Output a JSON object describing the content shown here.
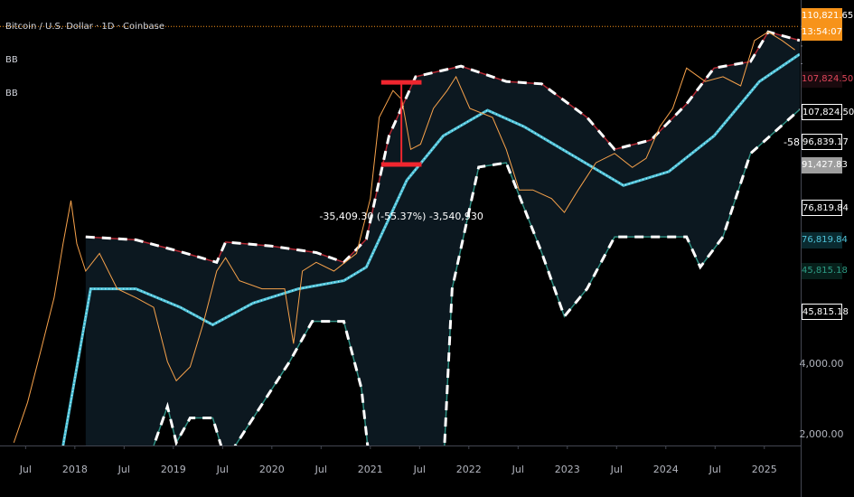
{
  "chart_data": {
    "type": "line",
    "title": "Bitcoin / U.S. Dollar · 1D · Coinbase",
    "indicators": [
      "BB",
      "BB"
    ],
    "log_scale": true,
    "grid": false,
    "xlim": [
      2017.24,
      2025.36
    ],
    "xticks": [
      {
        "value": 2017.5,
        "label": "Jul"
      },
      2018,
      {
        "value": 2018.5,
        "label": "Jul"
      },
      2019,
      {
        "value": 2019.5,
        "label": "Jul"
      },
      2020,
      {
        "value": 2020.5,
        "label": "Jul"
      },
      2021,
      {
        "value": 2021.5,
        "label": "Jul"
      },
      2022,
      {
        "value": 2022.5,
        "label": "Jul"
      },
      2023,
      {
        "value": 2023.5,
        "label": "Jul"
      },
      2024,
      {
        "value": 2024.5,
        "label": "Jul"
      },
      2025
    ],
    "ylim": [
      1800,
      143700
    ],
    "yticks": [
      {
        "value": 2000,
        "label": "2,000.00"
      },
      {
        "value": 4000,
        "label": "4,000.00"
      }
    ],
    "series": [
      {
        "style": "band-fill-upper",
        "color": "#0c1820",
        "x": [
          2018.11,
          2018.62,
          2019.07,
          2019.44,
          2019.53,
          2019.99,
          2020.45,
          2020.73,
          2020.96,
          2021.19,
          2021.46,
          2021.92,
          2022.38,
          2022.74,
          2023.2,
          2023.48,
          2023.85,
          2024.21,
          2024.49,
          2024.86,
          2025.04,
          2025.36
        ],
        "values": [
          14000,
          13600,
          12100,
          10900,
          13300,
          12800,
          12000,
          10900,
          13700,
          37800,
          67600,
          75000,
          64500,
          63000,
          45300,
          33100,
          36300,
          51700,
          73600,
          78400,
          105000,
          96500
        ]
      },
      {
        "style": "band-lower",
        "color": "#2f8f83",
        "x": [
          2018.71,
          2018.94,
          2019.03,
          2019.17,
          2019.4,
          2019.53,
          2020.18,
          2020.41,
          2020.73,
          2020.91,
          2021.0,
          2021.74,
          2021.83,
          2022.1,
          2022.38,
          2022.74,
          2022.97,
          2023.2,
          2023.48,
          2024.21,
          2024.35,
          2024.58,
          2024.86,
          2025.36
        ],
        "values": [
          1400,
          2640,
          1850,
          2360,
          2360,
          1550,
          4100,
          6100,
          6100,
          3150,
          1400,
          1400,
          8400,
          27800,
          29000,
          12000,
          6400,
          8400,
          14000,
          14000,
          10400,
          14000,
          31800,
          49000
        ]
      },
      {
        "style": "basis",
        "color": "#4fc3d9",
        "x": [
          2017.88,
          2018.16,
          2018.62,
          2019.07,
          2019.4,
          2019.81,
          2020.27,
          2020.73,
          2020.96,
          2021.37,
          2021.74,
          2022.19,
          2022.56,
          2023.02,
          2023.57,
          2024.03,
          2024.49,
          2024.95,
          2025.36
        ],
        "values": [
          1800,
          8400,
          8400,
          7000,
          5900,
          7300,
          8400,
          9100,
          10400,
          24400,
          37800,
          48600,
          41400,
          31800,
          23200,
          26600,
          37800,
          64500,
          84400
        ]
      },
      {
        "style": "price",
        "color": "#f7a24b",
        "x": [
          2017.38,
          2017.52,
          2017.65,
          2017.79,
          2017.88,
          2017.96,
          2018.02,
          2018.11,
          2018.25,
          2018.43,
          2018.62,
          2018.8,
          2018.94,
          2019.03,
          2019.17,
          2019.3,
          2019.44,
          2019.53,
          2019.67,
          2019.9,
          2020.13,
          2020.22,
          2020.31,
          2020.45,
          2020.63,
          2020.86,
          2021.0,
          2021.09,
          2021.23,
          2021.32,
          2021.41,
          2021.51,
          2021.64,
          2021.78,
          2021.87,
          2022.01,
          2022.24,
          2022.38,
          2022.51,
          2022.65,
          2022.84,
          2022.97,
          2023.11,
          2023.29,
          2023.48,
          2023.66,
          2023.8,
          2023.94,
          2024.07,
          2024.21,
          2024.4,
          2024.58,
          2024.76,
          2024.9,
          2025.04,
          2025.18,
          2025.31
        ],
        "values": [
          1850,
          2750,
          4500,
          7700,
          13100,
          20000,
          13100,
          10000,
          11900,
          8400,
          7700,
          7000,
          4100,
          3400,
          3900,
          5900,
          10000,
          11400,
          9100,
          8400,
          8400,
          4900,
          10000,
          10900,
          10000,
          11900,
          20400,
          45300,
          59000,
          54000,
          33100,
          34800,
          49500,
          59000,
          67600,
          49500,
          45300,
          33100,
          22200,
          22200,
          20400,
          17800,
          22200,
          29000,
          31800,
          27700,
          30300,
          41400,
          49500,
          73600,
          64500,
          67600,
          61800,
          96500,
          105000,
          96500,
          88000
        ]
      }
    ],
    "measure": {
      "x0": 2021.11,
      "x1": 2021.52,
      "from": 63950,
      "to": 28541,
      "color": "#f0262f",
      "label": "-35,409.30 (-55.37%) -3,540,930"
    },
    "cut_label": "-58,",
    "price_labels": [
      {
        "value": 110821.65,
        "label": "110,821.65"
      },
      {
        "value": 107824.5,
        "label": "107,824.50"
      },
      {
        "value": 107824.5,
        "label": "107,824.50"
      },
      {
        "value": 96839.17,
        "label": "96,839.17"
      },
      {
        "value": 91427.83,
        "label": "91,427.83"
      },
      {
        "value": 76819.84,
        "label": "76,819.84"
      },
      {
        "value": 76819.84,
        "label": "76,819.84"
      },
      {
        "value": 45815.18,
        "label": "45,815.18"
      },
      {
        "value": 45815.18,
        "label": "45,815.18"
      }
    ],
    "countdown": "13:54:07"
  }
}
